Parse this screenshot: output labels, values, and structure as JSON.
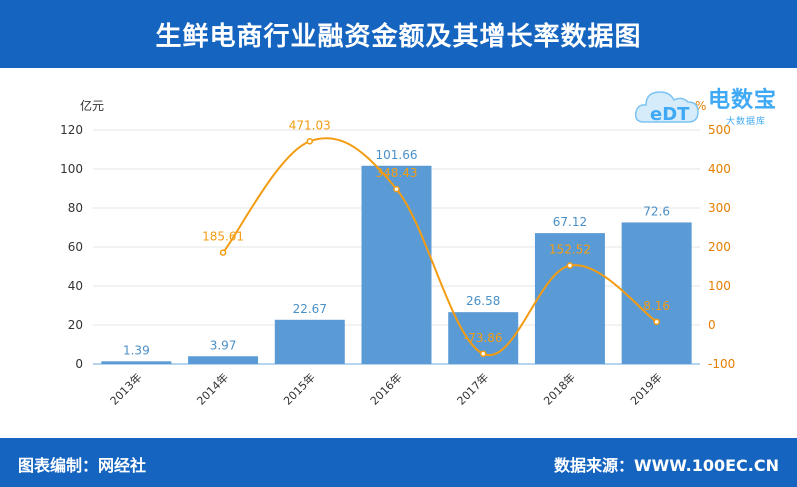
{
  "header": {
    "title": "生鲜电商行业融资金额及其增长率数据图"
  },
  "footer": {
    "left": "图表编制：网经社",
    "right": "数据来源：WWW.100EC.CN"
  },
  "logo": {
    "main": "电数宝",
    "sub": "大数据库",
    "mark": "eDT"
  },
  "colors": {
    "header_bg": "#1565c0",
    "bar": "#5b9bd5",
    "line": "#f39c12",
    "bar_label": "#4a90c8"
  },
  "chart_data": {
    "type": "bar",
    "categories": [
      "2013年",
      "2014年",
      "2015年",
      "2016年",
      "2017年",
      "2018年",
      "2019年"
    ],
    "series": [
      {
        "type": "bar",
        "axis": "left",
        "values": [
          1.39,
          3.97,
          22.67,
          101.66,
          26.58,
          67.12,
          72.6
        ],
        "labels": [
          "1.39",
          "3.97",
          "22.67",
          "101.66",
          "26.58",
          "67.12",
          "72.6"
        ]
      },
      {
        "type": "line",
        "axis": "right",
        "values": [
          null,
          185.61,
          471.03,
          348.43,
          -73.86,
          152.52,
          8.16
        ],
        "labels": [
          "",
          "185.61",
          "471.03",
          "348.43",
          "-73.86",
          "152.52",
          "8.16"
        ]
      }
    ],
    "y_left": {
      "unit": "亿元",
      "ylim": [
        0,
        120
      ],
      "ticks": [
        0,
        20,
        40,
        60,
        80,
        100,
        120
      ]
    },
    "y_right": {
      "unit": "%",
      "ylim": [
        -100,
        500
      ],
      "ticks": [
        -100,
        0,
        100,
        200,
        300,
        400,
        500
      ]
    },
    "grid": true
  }
}
